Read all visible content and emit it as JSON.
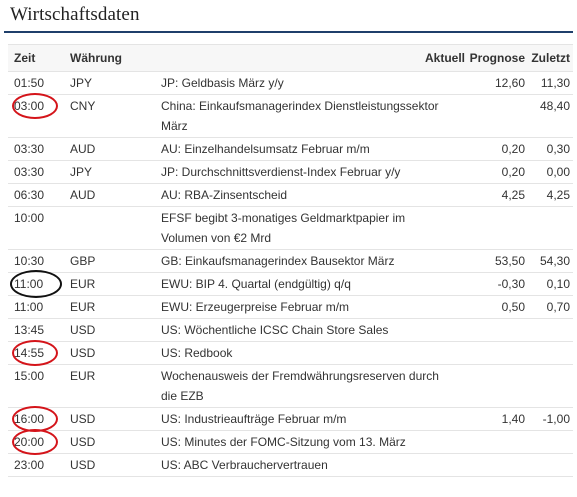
{
  "header": {
    "title": "Wirtschaftsdaten"
  },
  "table": {
    "columns": {
      "time": "Zeit",
      "currency": "Währung",
      "event": "",
      "actual": "Aktuell",
      "forecast": "Prognose",
      "previous": "Zuletzt"
    },
    "rows": [
      {
        "time": "01:50",
        "currency": "JPY",
        "event": "JP: Geldbasis März y/y",
        "actual": "",
        "forecast": "12,60",
        "previous": "11,30",
        "marker": "none"
      },
      {
        "time": "03:00",
        "currency": "CNY",
        "event": "China: Einkaufsmanagerindex Dienstleistungssektor März",
        "actual": "",
        "forecast": "",
        "previous": "48,40",
        "marker": "red"
      },
      {
        "time": "03:30",
        "currency": "AUD",
        "event": "AU: Einzelhandelsumsatz Februar m/m",
        "actual": "",
        "forecast": "0,20",
        "previous": "0,30",
        "marker": "none"
      },
      {
        "time": "03:30",
        "currency": "JPY",
        "event": "JP: Durchschnittsverdienst-Index Februar y/y",
        "actual": "",
        "forecast": "0,20",
        "previous": "0,00",
        "marker": "none"
      },
      {
        "time": "06:30",
        "currency": "AUD",
        "event": "AU: RBA-Zinsentscheid",
        "actual": "",
        "forecast": "4,25",
        "previous": "4,25",
        "marker": "none"
      },
      {
        "time": "10:00",
        "currency": "",
        "event": "EFSF begibt 3-monatiges Geldmarktpapier im Volumen von €2 Mrd",
        "actual": "",
        "forecast": "",
        "previous": "",
        "marker": "none"
      },
      {
        "time": "10:30",
        "currency": "GBP",
        "event": "GB: Einkaufsmanagerindex Bausektor März",
        "actual": "",
        "forecast": "53,50",
        "previous": "54,30",
        "marker": "none"
      },
      {
        "time": "11:00",
        "currency": "EUR",
        "event": "EWU: BIP 4. Quartal (endgültig) q/q",
        "actual": "",
        "forecast": "-0,30",
        "previous": "0,10",
        "marker": "black"
      },
      {
        "time": "11:00",
        "currency": "EUR",
        "event": "EWU: Erzeugerpreise Februar m/m",
        "actual": "",
        "forecast": "0,50",
        "previous": "0,70",
        "marker": "none"
      },
      {
        "time": "13:45",
        "currency": "USD",
        "event": "US: Wöchentliche ICSC Chain Store Sales",
        "actual": "",
        "forecast": "",
        "previous": "",
        "marker": "none"
      },
      {
        "time": "14:55",
        "currency": "USD",
        "event": "US: Redbook",
        "actual": "",
        "forecast": "",
        "previous": "",
        "marker": "red"
      },
      {
        "time": "15:00",
        "currency": "EUR",
        "event": "Wochenausweis der Fremdwährungsreserven durch die EZB",
        "actual": "",
        "forecast": "",
        "previous": "",
        "marker": "none"
      },
      {
        "time": "16:00",
        "currency": "USD",
        "event": "US: Industrieaufträge Februar m/m",
        "actual": "",
        "forecast": "1,40",
        "previous": "-1,00",
        "marker": "red"
      },
      {
        "time": "20:00",
        "currency": "USD",
        "event": "US: Minutes der FOMC-Sitzung vom 13. März",
        "actual": "",
        "forecast": "",
        "previous": "",
        "marker": "red"
      },
      {
        "time": "23:00",
        "currency": "USD",
        "event": "US: ABC Verbrauchervertrauen",
        "actual": "",
        "forecast": "",
        "previous": "",
        "marker": "none"
      }
    ]
  }
}
